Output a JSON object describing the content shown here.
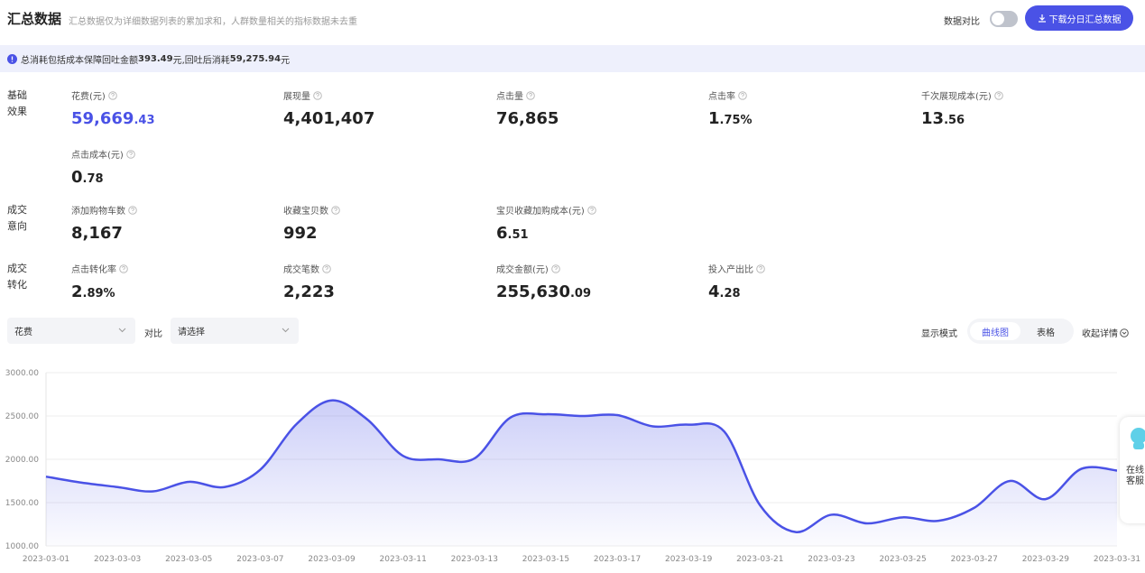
{
  "header": {
    "title": "汇总数据",
    "subtitle": "汇总数据仅为详细数据列表的累加求和，人群数量相关的指标数据未去重",
    "compare_label": "数据对比",
    "download_button": "下载分日汇总数据"
  },
  "notice": {
    "parts": [
      "总消耗包括成本保障回吐金额",
      "393.49",
      "元,回吐后消耗",
      "59,275.94",
      "元"
    ]
  },
  "metric_groups": [
    {
      "label": [
        "基础",
        "效果"
      ],
      "metrics": [
        {
          "label": "花费(元)",
          "main": "59,669",
          "small": ".43"
        },
        {
          "label": "展现量",
          "main": "4,401,407"
        },
        {
          "label": "点击量",
          "main": "76,865"
        },
        {
          "label": "点击率",
          "main": "1",
          "small": ".75%"
        },
        {
          "label": "千次展现成本(元)",
          "main": "13",
          "small": ".56"
        },
        {
          "label": "点击成本(元)",
          "main": "0",
          "small": ".78"
        }
      ]
    },
    {
      "label": [
        "成交",
        "意向"
      ],
      "metrics": [
        {
          "label": "添加购物车数",
          "main": "8,167"
        },
        {
          "label": "收藏宝贝数",
          "main": "992"
        },
        {
          "label": "宝贝收藏加购成本(元)",
          "main": "6",
          "small": ".51"
        }
      ]
    },
    {
      "label": [
        "成交",
        "转化"
      ],
      "metrics": [
        {
          "label": "点击转化率",
          "main": "2",
          "small": ".89%"
        },
        {
          "label": "成交笔数",
          "main": "2,223"
        },
        {
          "label": "成交金额(元)",
          "main": "255,630",
          "small": ".09"
        },
        {
          "label": "投入产出比",
          "main": "4",
          "small": ".28"
        }
      ]
    }
  ],
  "controls": {
    "metric_select": "花费",
    "compare_label": "对比",
    "compare_select": "请选择",
    "mode_label": "显示模式",
    "mode_options": [
      "曲线图",
      "表格"
    ],
    "collapse": "收起详情"
  },
  "chart_data": {
    "type": "line",
    "smooth": true,
    "color": "#4a52e6",
    "grid": true,
    "categories": [
      "2023-03-01",
      null,
      "2023-03-03",
      null,
      "2023-03-05",
      null,
      "2023-03-07",
      null,
      "2023-03-09",
      null,
      "2023-03-11",
      null,
      "2023-03-13",
      null,
      "2023-03-15",
      null,
      "2023-03-17",
      null,
      "2023-03-19",
      null,
      "2023-03-21",
      null,
      "2023-03-23",
      null,
      "2023-03-25",
      null,
      "2023-03-27",
      null,
      "2023-03-29",
      null,
      "2023-03-31"
    ],
    "values": [
      1800,
      1730,
      1680,
      1630,
      1740,
      1680,
      1880,
      2400,
      2680,
      2460,
      2040,
      2000,
      2010,
      2480,
      2520,
      2500,
      2510,
      2380,
      2400,
      2320,
      1470,
      1160,
      1360,
      1260,
      1330,
      1290,
      1440,
      1750,
      1540,
      1890,
      1870
    ],
    "ylim": [
      1000,
      3000
    ],
    "yticks": [
      {
        "value": 1000,
        "label": "1000.00"
      },
      {
        "value": 1500,
        "label": "1500.00"
      },
      {
        "value": 2000,
        "label": "2000.00"
      },
      {
        "value": 2500,
        "label": "2500.00"
      },
      {
        "value": 3000,
        "label": "3000.00"
      }
    ]
  },
  "service_widget": {
    "lines": [
      "在线",
      "客服"
    ]
  }
}
